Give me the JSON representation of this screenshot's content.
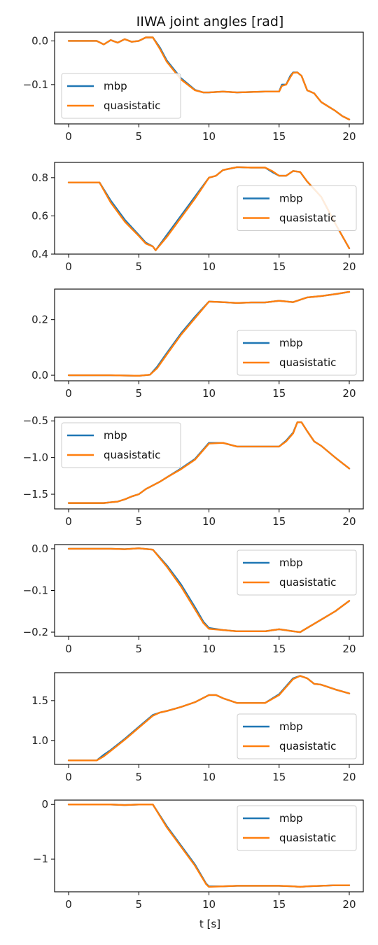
{
  "figure": {
    "title": "IIWA joint angles [rad]",
    "xlabel": "t [s]"
  },
  "colors": {
    "mbp": "#1f77b4",
    "quasistatic": "#ff7f0e"
  },
  "chart_data": [
    {
      "type": "line",
      "xlim": [
        -1,
        21
      ],
      "ylim": [
        -0.19,
        0.02
      ],
      "xticks": [
        0,
        5,
        10,
        15,
        20
      ],
      "xtick_labels": [
        "0",
        "5",
        "10",
        "15",
        "20"
      ],
      "yticks": [
        0.0,
        -0.1
      ],
      "ytick_labels": [
        "0.0",
        "−0.1"
      ],
      "legend": "bottom-left",
      "grid": false,
      "series": [
        {
          "name": "mbp",
          "x": [
            0,
            2,
            2.5,
            3,
            3.5,
            4,
            4.5,
            5,
            5.5,
            6,
            6.5,
            7,
            8,
            9,
            9.6,
            10,
            11,
            12,
            13,
            14,
            15,
            15.2,
            15.5,
            15.8,
            16,
            16.3,
            16.6,
            17,
            17.5,
            18,
            18.5,
            19,
            19.5,
            20
          ],
          "y": [
            0.0,
            0.0,
            -0.008,
            0.002,
            -0.004,
            0.004,
            -0.002,
            0.0,
            0.008,
            0.008,
            -0.015,
            -0.045,
            -0.085,
            -0.112,
            -0.118,
            -0.118,
            -0.116,
            -0.118,
            -0.117,
            -0.116,
            -0.116,
            -0.1,
            -0.1,
            -0.08,
            -0.072,
            -0.072,
            -0.08,
            -0.113,
            -0.12,
            -0.14,
            -0.15,
            -0.16,
            -0.172,
            -0.18
          ]
        },
        {
          "name": "quasistatic",
          "x": [
            0,
            2,
            2.5,
            3,
            3.5,
            4,
            4.5,
            5,
            5.5,
            6,
            6.5,
            7,
            8,
            9,
            9.6,
            10,
            11,
            12,
            13,
            14,
            15,
            15.2,
            15.5,
            15.8,
            16,
            16.3,
            16.6,
            17,
            17.5,
            18,
            18.5,
            19,
            19.5,
            20
          ],
          "y": [
            0.0,
            0.0,
            -0.008,
            0.002,
            -0.004,
            0.004,
            -0.002,
            0.0,
            0.008,
            0.008,
            -0.018,
            -0.048,
            -0.088,
            -0.113,
            -0.118,
            -0.118,
            -0.116,
            -0.118,
            -0.117,
            -0.116,
            -0.116,
            -0.103,
            -0.1,
            -0.083,
            -0.073,
            -0.072,
            -0.08,
            -0.113,
            -0.12,
            -0.14,
            -0.15,
            -0.16,
            -0.172,
            -0.18
          ]
        }
      ]
    },
    {
      "type": "line",
      "xlim": [
        -1,
        21
      ],
      "ylim": [
        0.4,
        0.88
      ],
      "xticks": [
        0,
        5,
        10,
        15,
        20
      ],
      "xtick_labels": [
        "0",
        "5",
        "10",
        "15",
        "20"
      ],
      "yticks": [
        0.4,
        0.6,
        0.8
      ],
      "ytick_labels": [
        "0.4",
        "0.6",
        "0.8"
      ],
      "legend": "center-right",
      "grid": false,
      "series": [
        {
          "name": "mbp",
          "x": [
            0,
            2.2,
            3,
            4,
            5,
            5.5,
            6,
            6.2,
            7,
            8,
            9,
            10,
            10.5,
            11,
            12,
            13,
            14,
            14.5,
            15,
            15.5,
            16,
            16.5,
            17,
            18,
            19,
            20
          ],
          "y": [
            0.775,
            0.775,
            0.68,
            0.58,
            0.5,
            0.46,
            0.44,
            0.42,
            0.5,
            0.6,
            0.7,
            0.8,
            0.81,
            0.84,
            0.855,
            0.853,
            0.853,
            0.83,
            0.81,
            0.81,
            0.835,
            0.83,
            0.78,
            0.7,
            0.56,
            0.43
          ]
        },
        {
          "name": "quasistatic",
          "x": [
            0,
            2.2,
            3,
            4,
            5,
            5.5,
            6,
            6.2,
            7,
            8,
            9,
            10,
            10.5,
            11,
            12,
            13,
            14,
            14.5,
            15,
            15.5,
            16,
            16.5,
            17,
            18,
            19,
            20
          ],
          "y": [
            0.775,
            0.775,
            0.67,
            0.57,
            0.495,
            0.455,
            0.44,
            0.42,
            0.49,
            0.59,
            0.69,
            0.8,
            0.81,
            0.84,
            0.855,
            0.853,
            0.853,
            0.835,
            0.81,
            0.81,
            0.835,
            0.83,
            0.78,
            0.7,
            0.56,
            0.43
          ]
        }
      ]
    },
    {
      "type": "line",
      "xlim": [
        -1,
        21
      ],
      "ylim": [
        -0.02,
        0.31
      ],
      "xticks": [
        0,
        5,
        10,
        15,
        20
      ],
      "xtick_labels": [
        "0",
        "5",
        "10",
        "15",
        "20"
      ],
      "yticks": [
        0.0,
        0.2
      ],
      "ytick_labels": [
        "0.0",
        "0.2"
      ],
      "legend": "bottom-right",
      "grid": false,
      "series": [
        {
          "name": "mbp",
          "x": [
            0,
            3,
            5,
            5.8,
            6.3,
            7,
            8,
            9,
            10,
            11,
            12,
            13,
            14,
            15,
            16,
            17,
            18,
            19,
            20
          ],
          "y": [
            0.0,
            0.0,
            -0.002,
            0.002,
            0.03,
            0.08,
            0.15,
            0.21,
            0.265,
            0.263,
            0.26,
            0.262,
            0.262,
            0.268,
            0.263,
            0.28,
            0.285,
            0.292,
            0.3
          ]
        },
        {
          "name": "quasistatic",
          "x": [
            0,
            3,
            5,
            5.8,
            6.3,
            7,
            8,
            9,
            10,
            11,
            12,
            13,
            14,
            15,
            16,
            17,
            18,
            19,
            20
          ],
          "y": [
            0.0,
            0.0,
            -0.002,
            0.002,
            0.025,
            0.075,
            0.145,
            0.205,
            0.265,
            0.263,
            0.26,
            0.262,
            0.262,
            0.268,
            0.263,
            0.28,
            0.285,
            0.292,
            0.3
          ]
        }
      ]
    },
    {
      "type": "line",
      "xlim": [
        -1,
        21
      ],
      "ylim": [
        -1.7,
        -0.45
      ],
      "xticks": [
        0,
        5,
        10,
        15,
        20
      ],
      "xtick_labels": [
        "0",
        "5",
        "10",
        "15",
        "20"
      ],
      "yticks": [
        -1.5,
        -1.0,
        -0.5
      ],
      "ytick_labels": [
        "−1.5",
        "−1.0",
        "−0.5"
      ],
      "legend": "top-left",
      "grid": false,
      "series": [
        {
          "name": "mbp",
          "x": [
            0,
            2.5,
            3,
            3.5,
            4,
            4.5,
            5,
            5.5,
            6,
            6.5,
            7,
            8,
            9,
            10,
            11,
            12,
            13,
            14,
            15,
            15.5,
            16,
            16.3,
            16.6,
            17,
            17.5,
            18,
            19,
            20
          ],
          "y": [
            -1.62,
            -1.62,
            -1.61,
            -1.6,
            -1.57,
            -1.53,
            -1.5,
            -1.43,
            -1.38,
            -1.33,
            -1.27,
            -1.15,
            -1.02,
            -0.8,
            -0.8,
            -0.85,
            -0.85,
            -0.85,
            -0.85,
            -0.77,
            -0.66,
            -0.52,
            -0.52,
            -0.64,
            -0.78,
            -0.84,
            -1.0,
            -1.15
          ]
        },
        {
          "name": "quasistatic",
          "x": [
            0,
            2.5,
            3,
            3.5,
            4,
            4.5,
            5,
            5.5,
            6,
            6.5,
            7,
            8,
            9,
            10,
            11,
            12,
            13,
            14,
            15,
            15.5,
            16,
            16.3,
            16.6,
            17,
            17.5,
            18,
            19,
            20
          ],
          "y": [
            -1.62,
            -1.62,
            -1.61,
            -1.6,
            -1.57,
            -1.53,
            -1.5,
            -1.43,
            -1.38,
            -1.33,
            -1.27,
            -1.16,
            -1.03,
            -0.81,
            -0.8,
            -0.85,
            -0.85,
            -0.85,
            -0.85,
            -0.78,
            -0.67,
            -0.52,
            -0.52,
            -0.64,
            -0.78,
            -0.84,
            -1.0,
            -1.15
          ]
        }
      ]
    },
    {
      "type": "line",
      "xlim": [
        -1,
        21
      ],
      "ylim": [
        -0.21,
        0.01
      ],
      "xticks": [
        0,
        5,
        10,
        15,
        20
      ],
      "xtick_labels": [
        "0",
        "5",
        "10",
        "15",
        "20"
      ],
      "yticks": [
        0.0,
        -0.1,
        -0.2
      ],
      "ytick_labels": [
        "0.0",
        "−0.1",
        "−0.2"
      ],
      "legend": "top-right",
      "grid": false,
      "series": [
        {
          "name": "mbp",
          "x": [
            0,
            3,
            4,
            5,
            6,
            7,
            8,
            9,
            9.6,
            10,
            11,
            12,
            13,
            14,
            15,
            16,
            16.5,
            17,
            18,
            19,
            20
          ],
          "y": [
            0.0,
            0.0,
            -0.001,
            0.001,
            -0.002,
            -0.04,
            -0.085,
            -0.14,
            -0.175,
            -0.19,
            -0.195,
            -0.198,
            -0.198,
            -0.198,
            -0.193,
            -0.198,
            -0.2,
            -0.19,
            -0.17,
            -0.15,
            -0.125
          ]
        },
        {
          "name": "quasistatic",
          "x": [
            0,
            3,
            4,
            5,
            6,
            7,
            8,
            9,
            9.6,
            10,
            11,
            12,
            13,
            14,
            15,
            16,
            16.5,
            17,
            18,
            19,
            20
          ],
          "y": [
            0.0,
            0.0,
            -0.001,
            0.001,
            -0.002,
            -0.043,
            -0.09,
            -0.145,
            -0.178,
            -0.192,
            -0.195,
            -0.198,
            -0.198,
            -0.198,
            -0.193,
            -0.198,
            -0.2,
            -0.19,
            -0.17,
            -0.15,
            -0.125
          ]
        }
      ]
    },
    {
      "type": "line",
      "xlim": [
        -1,
        21
      ],
      "ylim": [
        0.7,
        1.85
      ],
      "xticks": [
        0,
        5,
        10,
        15,
        20
      ],
      "xtick_labels": [
        "0",
        "5",
        "10",
        "15",
        "20"
      ],
      "yticks": [
        1.0,
        1.5
      ],
      "ytick_labels": [
        "1.0",
        "1.5"
      ],
      "legend": "bottom-right",
      "grid": false,
      "series": [
        {
          "name": "mbp",
          "x": [
            0,
            2,
            2.5,
            3,
            4,
            5,
            6,
            6.5,
            7,
            8,
            9,
            10,
            10.5,
            11,
            12,
            13,
            14,
            15,
            16,
            16.5,
            17,
            17.5,
            18,
            19,
            20
          ],
          "y": [
            0.75,
            0.75,
            0.82,
            0.88,
            1.02,
            1.17,
            1.32,
            1.35,
            1.37,
            1.42,
            1.48,
            1.57,
            1.57,
            1.53,
            1.47,
            1.47,
            1.47,
            1.58,
            1.78,
            1.81,
            1.78,
            1.71,
            1.7,
            1.64,
            1.59
          ]
        },
        {
          "name": "quasistatic",
          "x": [
            0,
            2,
            2.5,
            3,
            4,
            5,
            6,
            6.5,
            7,
            8,
            9,
            10,
            10.5,
            11,
            12,
            13,
            14,
            15,
            16,
            16.5,
            17,
            17.5,
            18,
            19,
            20
          ],
          "y": [
            0.75,
            0.75,
            0.8,
            0.87,
            1.01,
            1.16,
            1.31,
            1.35,
            1.37,
            1.42,
            1.48,
            1.57,
            1.57,
            1.53,
            1.47,
            1.47,
            1.47,
            1.57,
            1.77,
            1.81,
            1.78,
            1.71,
            1.7,
            1.64,
            1.59
          ]
        }
      ]
    },
    {
      "type": "line",
      "xlim": [
        -1,
        21
      ],
      "ylim": [
        -1.6,
        0.08
      ],
      "xticks": [
        0,
        5,
        10,
        15,
        20
      ],
      "xtick_labels": [
        "0",
        "5",
        "10",
        "15",
        "20"
      ],
      "yticks": [
        0,
        -1
      ],
      "ytick_labels": [
        "0",
        "−1"
      ],
      "legend": "top-right",
      "grid": false,
      "series": [
        {
          "name": "mbp",
          "x": [
            0,
            3,
            4,
            5,
            6,
            7,
            8,
            9,
            9.8,
            10,
            11,
            12,
            13,
            14,
            15,
            16,
            16.5,
            17,
            18,
            19,
            20
          ],
          "y": [
            0.0,
            0.0,
            -0.01,
            0.0,
            0.0,
            -0.4,
            -0.75,
            -1.1,
            -1.45,
            -1.5,
            -1.5,
            -1.49,
            -1.49,
            -1.49,
            -1.49,
            -1.5,
            -1.51,
            -1.5,
            -1.49,
            -1.48,
            -1.48
          ]
        },
        {
          "name": "quasistatic",
          "x": [
            0,
            3,
            4,
            5,
            6,
            7,
            8,
            9,
            9.8,
            10,
            11,
            12,
            13,
            14,
            15,
            16,
            16.5,
            17,
            18,
            19,
            20
          ],
          "y": [
            0.0,
            0.0,
            -0.01,
            0.0,
            0.0,
            -0.42,
            -0.77,
            -1.12,
            -1.46,
            -1.51,
            -1.5,
            -1.49,
            -1.49,
            -1.49,
            -1.49,
            -1.5,
            -1.51,
            -1.5,
            -1.49,
            -1.48,
            -1.48
          ]
        }
      ]
    }
  ]
}
